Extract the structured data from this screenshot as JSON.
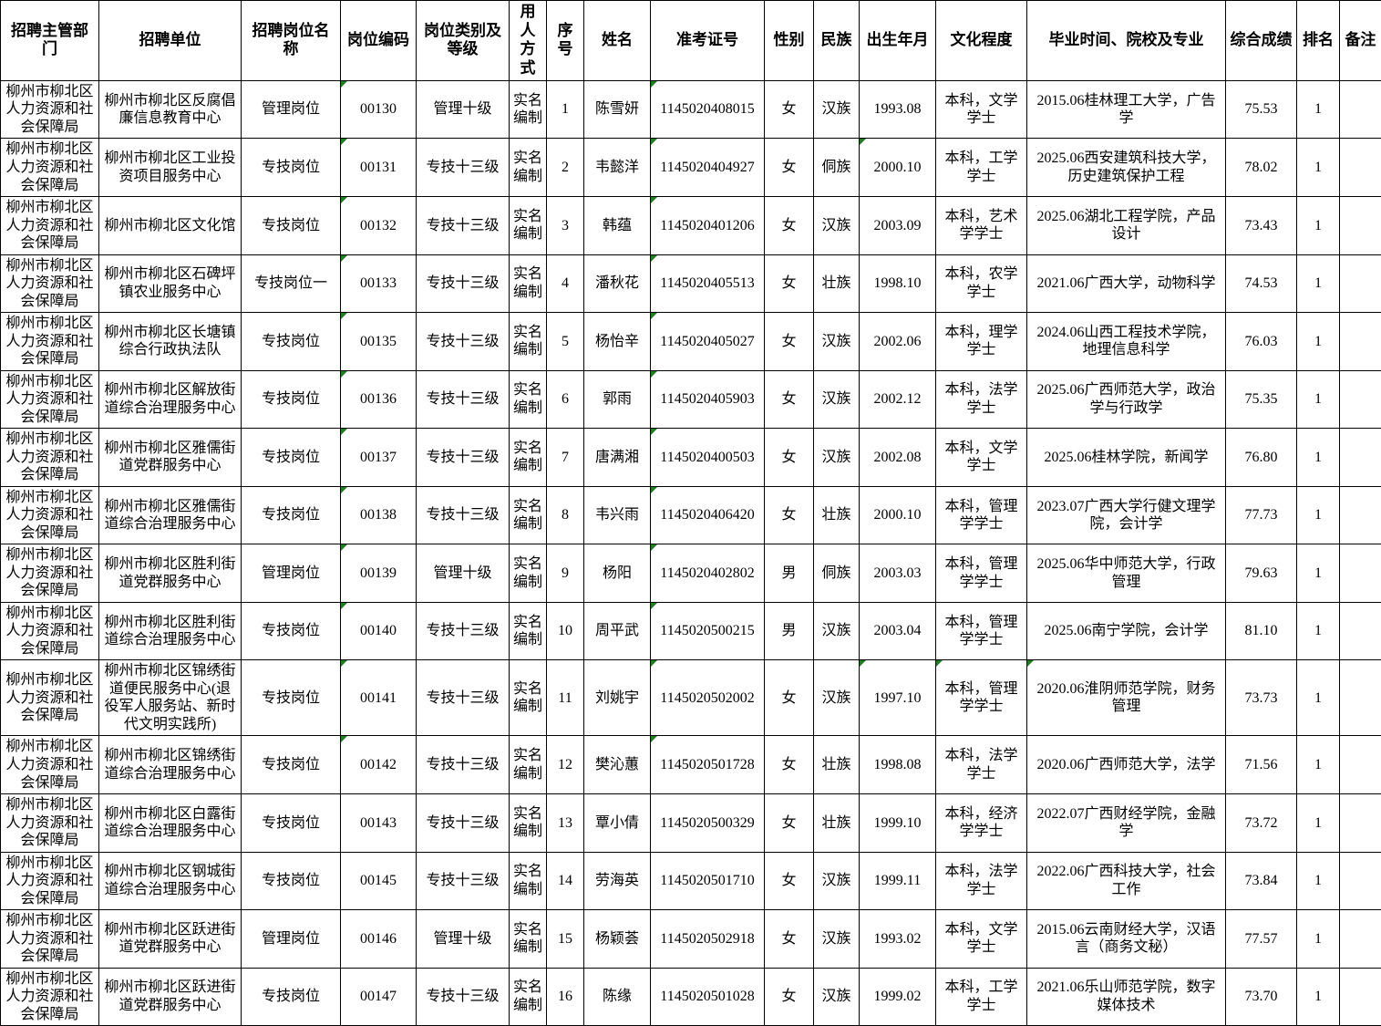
{
  "colors": {
    "background": "#FFFFFF",
    "grid_line": "#000000",
    "text": "#000000",
    "flag_green": "#1E7F1E"
  },
  "table": {
    "columns": [
      {
        "key": "dept",
        "label": "招聘主管部门"
      },
      {
        "key": "unit",
        "label": "招聘单位"
      },
      {
        "key": "position",
        "label": "招聘岗位名称"
      },
      {
        "key": "code",
        "label": "岗位编码"
      },
      {
        "key": "category",
        "label": "岗位类别及等级"
      },
      {
        "key": "method",
        "label": "用人方式"
      },
      {
        "key": "no",
        "label": "序号"
      },
      {
        "key": "name",
        "label": "姓名"
      },
      {
        "key": "exam_no",
        "label": "准考证号"
      },
      {
        "key": "gender",
        "label": "性别"
      },
      {
        "key": "ethnicity",
        "label": "民族"
      },
      {
        "key": "birth",
        "label": "出生年月"
      },
      {
        "key": "education",
        "label": "文化程度"
      },
      {
        "key": "graduation",
        "label": "毕业时间、院校及专业"
      },
      {
        "key": "score",
        "label": "综合成绩"
      },
      {
        "key": "rank",
        "label": "排名"
      },
      {
        "key": "remark",
        "label": "备注"
      }
    ],
    "rows": [
      {
        "dept": "柳州市柳北区人力资源和社会保障局",
        "unit": "柳州市柳北区反腐倡廉信息教育中心",
        "position": "管理岗位",
        "code": "00130",
        "category": "管理十级",
        "method": "实名编制",
        "no": "1",
        "name": "陈雪妍",
        "exam_no": "1145020408015",
        "gender": "女",
        "ethnicity": "汉族",
        "birth": "1993.08",
        "education": "本科，文学学士",
        "graduation": "2015.06桂林理工大学，广告学",
        "score": "75.53",
        "rank": "1",
        "remark": "",
        "flags": [
          "code",
          "exam_no"
        ]
      },
      {
        "dept": "柳州市柳北区人力资源和社会保障局",
        "unit": "柳州市柳北区工业投资项目服务中心",
        "position": "专技岗位",
        "code": "00131",
        "category": "专技十三级",
        "method": "实名编制",
        "no": "2",
        "name": "韦懿洋",
        "exam_no": "1145020404927",
        "gender": "女",
        "ethnicity": "侗族",
        "birth": "2000.10",
        "education": "本科，工学学士",
        "graduation": "2025.06西安建筑科技大学，历史建筑保护工程",
        "score": "78.02",
        "rank": "1",
        "remark": "",
        "flags": [
          "code",
          "exam_no",
          "birth"
        ]
      },
      {
        "dept": "柳州市柳北区人力资源和社会保障局",
        "unit": "柳州市柳北区文化馆",
        "position": "专技岗位",
        "code": "00132",
        "category": "专技十三级",
        "method": "实名编制",
        "no": "3",
        "name": "韩蕴",
        "exam_no": "1145020401206",
        "gender": "女",
        "ethnicity": "汉族",
        "birth": "2003.09",
        "education": "本科，艺术学学士",
        "graduation": "2025.06湖北工程学院，产品设计",
        "score": "73.43",
        "rank": "1",
        "remark": "",
        "flags": [
          "code",
          "exam_no"
        ]
      },
      {
        "dept": "柳州市柳北区人力资源和社会保障局",
        "unit": "柳州市柳北区石碑坪镇农业服务中心",
        "position": "专技岗位一",
        "code": "00133",
        "category": "专技十三级",
        "method": "实名编制",
        "no": "4",
        "name": "潘秋花",
        "exam_no": "1145020405513",
        "gender": "女",
        "ethnicity": "壮族",
        "birth": "1998.10",
        "education": "本科，农学学士",
        "graduation": "2021.06广西大学，动物科学",
        "score": "74.53",
        "rank": "1",
        "remark": "",
        "flags": [
          "code",
          "exam_no"
        ]
      },
      {
        "dept": "柳州市柳北区人力资源和社会保障局",
        "unit": "柳州市柳北区长塘镇综合行政执法队",
        "position": "专技岗位",
        "code": "00135",
        "category": "专技十三级",
        "method": "实名编制",
        "no": "5",
        "name": "杨怡辛",
        "exam_no": "1145020405027",
        "gender": "女",
        "ethnicity": "汉族",
        "birth": "2002.06",
        "education": "本科，理学学士",
        "graduation": "2024.06山西工程技术学院，地理信息科学",
        "score": "76.03",
        "rank": "1",
        "remark": "",
        "flags": [
          "code",
          "exam_no"
        ]
      },
      {
        "dept": "柳州市柳北区人力资源和社会保障局",
        "unit": "柳州市柳北区解放街道综合治理服务中心",
        "position": "专技岗位",
        "code": "00136",
        "category": "专技十三级",
        "method": "实名编制",
        "no": "6",
        "name": "郭雨",
        "exam_no": "1145020405903",
        "gender": "女",
        "ethnicity": "汉族",
        "birth": "2002.12",
        "education": "本科，法学学士",
        "graduation": "2025.06广西师范大学，政治学与行政学",
        "score": "75.35",
        "rank": "1",
        "remark": "",
        "flags": [
          "code",
          "exam_no"
        ]
      },
      {
        "dept": "柳州市柳北区人力资源和社会保障局",
        "unit": "柳州市柳北区雅儒街道党群服务中心",
        "position": "专技岗位",
        "code": "00137",
        "category": "专技十三级",
        "method": "实名编制",
        "no": "7",
        "name": "唐满湘",
        "exam_no": "1145020400503",
        "gender": "女",
        "ethnicity": "汉族",
        "birth": "2002.08",
        "education": "本科，文学学士",
        "graduation": "2025.06桂林学院，新闻学",
        "score": "76.80",
        "rank": "1",
        "remark": "",
        "flags": [
          "code",
          "exam_no"
        ]
      },
      {
        "dept": "柳州市柳北区人力资源和社会保障局",
        "unit": "柳州市柳北区雅儒街道综合治理服务中心",
        "position": "专技岗位",
        "code": "00138",
        "category": "专技十三级",
        "method": "实名编制",
        "no": "8",
        "name": "韦兴雨",
        "exam_no": "1145020406420",
        "gender": "女",
        "ethnicity": "壮族",
        "birth": "2000.10",
        "education": "本科，管理学学士",
        "graduation": "2023.07广西大学行健文理学院，会计学",
        "score": "77.73",
        "rank": "1",
        "remark": "",
        "flags": [
          "code",
          "exam_no"
        ]
      },
      {
        "dept": "柳州市柳北区人力资源和社会保障局",
        "unit": "柳州市柳北区胜利街道党群服务中心",
        "position": "管理岗位",
        "code": "00139",
        "category": "管理十级",
        "method": "实名编制",
        "no": "9",
        "name": "杨阳",
        "exam_no": "1145020402802",
        "gender": "男",
        "ethnicity": "侗族",
        "birth": "2003.03",
        "education": "本科，管理学学士",
        "graduation": "2025.06华中师范大学，行政管理",
        "score": "79.63",
        "rank": "1",
        "remark": "",
        "flags": [
          "code",
          "exam_no"
        ]
      },
      {
        "dept": "柳州市柳北区人力资源和社会保障局",
        "unit": "柳州市柳北区胜利街道综合治理服务中心",
        "position": "专技岗位",
        "code": "00140",
        "category": "专技十三级",
        "method": "实名编制",
        "no": "10",
        "name": "周平武",
        "exam_no": "1145020500215",
        "gender": "男",
        "ethnicity": "汉族",
        "birth": "2003.04",
        "education": "本科，管理学学士",
        "graduation": "2025.06南宁学院，会计学",
        "score": "81.10",
        "rank": "1",
        "remark": "",
        "flags": [
          "code",
          "exam_no"
        ]
      },
      {
        "dept": "柳州市柳北区人力资源和社会保障局",
        "unit": "柳州市柳北区锦绣街道便民服务中心(退役军人服务站、新时代文明实践所)",
        "position": "专技岗位",
        "code": "00141",
        "category": "专技十三级",
        "method": "实名编制",
        "no": "11",
        "name": "刘姚宇",
        "exam_no": "1145020502002",
        "gender": "女",
        "ethnicity": "汉族",
        "birth": "1997.10",
        "education": "本科，管理学学士",
        "graduation": "2020.06淮阴师范学院，财务管理",
        "score": "73.73",
        "rank": "1",
        "remark": "",
        "flags": [
          "code",
          "exam_no",
          "birth",
          "education",
          "graduation"
        ]
      },
      {
        "dept": "柳州市柳北区人力资源和社会保障局",
        "unit": "柳州市柳北区锦绣街道综合治理服务中心",
        "position": "专技岗位",
        "code": "00142",
        "category": "专技十三级",
        "method": "实名编制",
        "no": "12",
        "name": "樊沁蕙",
        "exam_no": "1145020501728",
        "gender": "女",
        "ethnicity": "壮族",
        "birth": "1998.08",
        "education": "本科，法学学士",
        "graduation": "2020.06广西师范大学，法学",
        "score": "71.56",
        "rank": "1",
        "remark": "",
        "flags": [
          "code",
          "exam_no"
        ]
      },
      {
        "dept": "柳州市柳北区人力资源和社会保障局",
        "unit": "柳州市柳北区白露街道综合治理服务中心",
        "position": "专技岗位",
        "code": "00143",
        "category": "专技十三级",
        "method": "实名编制",
        "no": "13",
        "name": "覃小倩",
        "exam_no": "1145020500329",
        "gender": "女",
        "ethnicity": "壮族",
        "birth": "1999.10",
        "education": "本科，经济学学士",
        "graduation": "2022.07广西财经学院，金融学",
        "score": "73.72",
        "rank": "1",
        "remark": "",
        "flags": []
      },
      {
        "dept": "柳州市柳北区人力资源和社会保障局",
        "unit": "柳州市柳北区钢城街道综合治理服务中心",
        "position": "专技岗位",
        "code": "00145",
        "category": "专技十三级",
        "method": "实名编制",
        "no": "14",
        "name": "劳海英",
        "exam_no": "1145020501710",
        "gender": "女",
        "ethnicity": "汉族",
        "birth": "1999.11",
        "education": "本科，法学学士",
        "graduation": "2022.06广西科技大学，社会工作",
        "score": "73.84",
        "rank": "1",
        "remark": "",
        "flags": []
      },
      {
        "dept": "柳州市柳北区人力资源和社会保障局",
        "unit": "柳州市柳北区跃进街道党群服务中心",
        "position": "管理岗位",
        "code": "00146",
        "category": "管理十级",
        "method": "实名编制",
        "no": "15",
        "name": "杨颖荟",
        "exam_no": "1145020502918",
        "gender": "女",
        "ethnicity": "汉族",
        "birth": "1993.02",
        "education": "本科，文学学士",
        "graduation": "2015.06云南财经大学，汉语言（商务文秘）",
        "score": "77.57",
        "rank": "1",
        "remark": "",
        "flags": []
      },
      {
        "dept": "柳州市柳北区人力资源和社会保障局",
        "unit": "柳州市柳北区跃进街道党群服务中心",
        "position": "专技岗位",
        "code": "00147",
        "category": "专技十三级",
        "method": "实名编制",
        "no": "16",
        "name": "陈缘",
        "exam_no": "1145020501028",
        "gender": "女",
        "ethnicity": "汉族",
        "birth": "1999.02",
        "education": "本科，工学学士",
        "graduation": "2021.06乐山师范学院，数字媒体技术",
        "score": "73.70",
        "rank": "1",
        "remark": "",
        "flags": []
      }
    ]
  }
}
